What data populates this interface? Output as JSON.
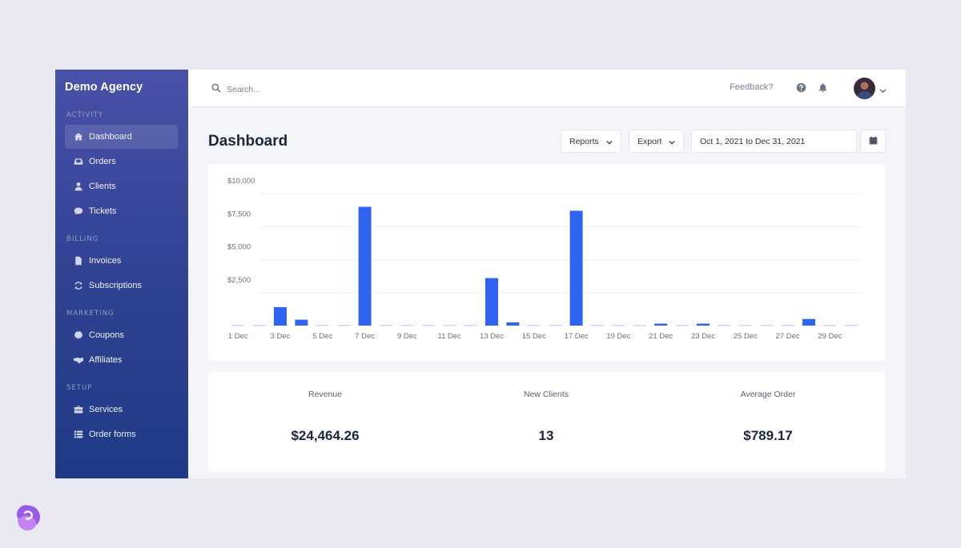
{
  "sidebar": {
    "brand": "Demo Agency",
    "sections": [
      {
        "label": "ACTIVITY",
        "items": [
          {
            "label": "Dashboard",
            "icon": "home-icon",
            "active": true
          },
          {
            "label": "Orders",
            "icon": "inbox-icon"
          },
          {
            "label": "Clients",
            "icon": "user-icon"
          },
          {
            "label": "Tickets",
            "icon": "comment-icon"
          }
        ]
      },
      {
        "label": "BILLING",
        "items": [
          {
            "label": "Invoices",
            "icon": "file-icon"
          },
          {
            "label": "Subscriptions",
            "icon": "refresh-icon"
          }
        ]
      },
      {
        "label": "MARKETING",
        "items": [
          {
            "label": "Coupons",
            "icon": "badge-icon"
          },
          {
            "label": "Affiliates",
            "icon": "handshake-icon"
          }
        ]
      },
      {
        "label": "SETUP",
        "items": [
          {
            "label": "Services",
            "icon": "briefcase-icon"
          },
          {
            "label": "Order forms",
            "icon": "table-icon"
          }
        ]
      }
    ]
  },
  "topbar": {
    "search_placeholder": "Search...",
    "feedback_label": "Feedback?",
    "icons": [
      "help-icon",
      "bell-icon",
      "avatar",
      "chevron-down-icon"
    ]
  },
  "page": {
    "title": "Dashboard",
    "reports_label": "Reports",
    "export_label": "Export",
    "date_range": "Oct 1, 2021 to Dec 31, 2021"
  },
  "colors": {
    "bar": "#2f64f0",
    "bar_zero": "#c9d6f7",
    "sidebar_top": "#4951a8",
    "sidebar_bottom": "#1f3a87"
  },
  "chart_data": {
    "type": "bar",
    "categories": [
      "1 Dec",
      "2 Dec",
      "3 Dec",
      "4 Dec",
      "5 Dec",
      "6 Dec",
      "7 Dec",
      "8 Dec",
      "9 Dec",
      "10 Dec",
      "11 Dec",
      "12 Dec",
      "13 Dec",
      "14 Dec",
      "15 Dec",
      "16 Dec",
      "17 Dec",
      "18 Dec",
      "19 Dec",
      "20 Dec",
      "21 Dec",
      "22 Dec",
      "23 Dec",
      "24 Dec",
      "25 Dec",
      "26 Dec",
      "27 Dec",
      "28 Dec",
      "29 Dec",
      "30 Dec"
    ],
    "tick_labels": [
      "1 Dec",
      "3 Dec",
      "5 Dec",
      "7 Dec",
      "9 Dec",
      "11 Dec",
      "13 Dec",
      "15 Dec",
      "17 Dec",
      "19 Dec",
      "21 Dec",
      "23 Dec",
      "25 Dec",
      "27 Dec",
      "29 Dec"
    ],
    "values": [
      0,
      0,
      1400,
      450,
      0,
      0,
      9000,
      0,
      0,
      0,
      0,
      0,
      3600,
      250,
      0,
      0,
      8700,
      0,
      0,
      0,
      150,
      0,
      150,
      0,
      0,
      0,
      0,
      500,
      0,
      0
    ],
    "y_ticks": [
      "$2,500",
      "$5,000",
      "$7,500",
      "$10,000"
    ],
    "y_tick_values": [
      2500,
      5000,
      7500,
      10000
    ],
    "ylim": [
      0,
      10000
    ],
    "grid": true
  },
  "stats": [
    {
      "label": "Revenue",
      "value": "$24,464.26"
    },
    {
      "label": "New Clients",
      "value": "13"
    },
    {
      "label": "Average Order",
      "value": "$789.17"
    }
  ]
}
